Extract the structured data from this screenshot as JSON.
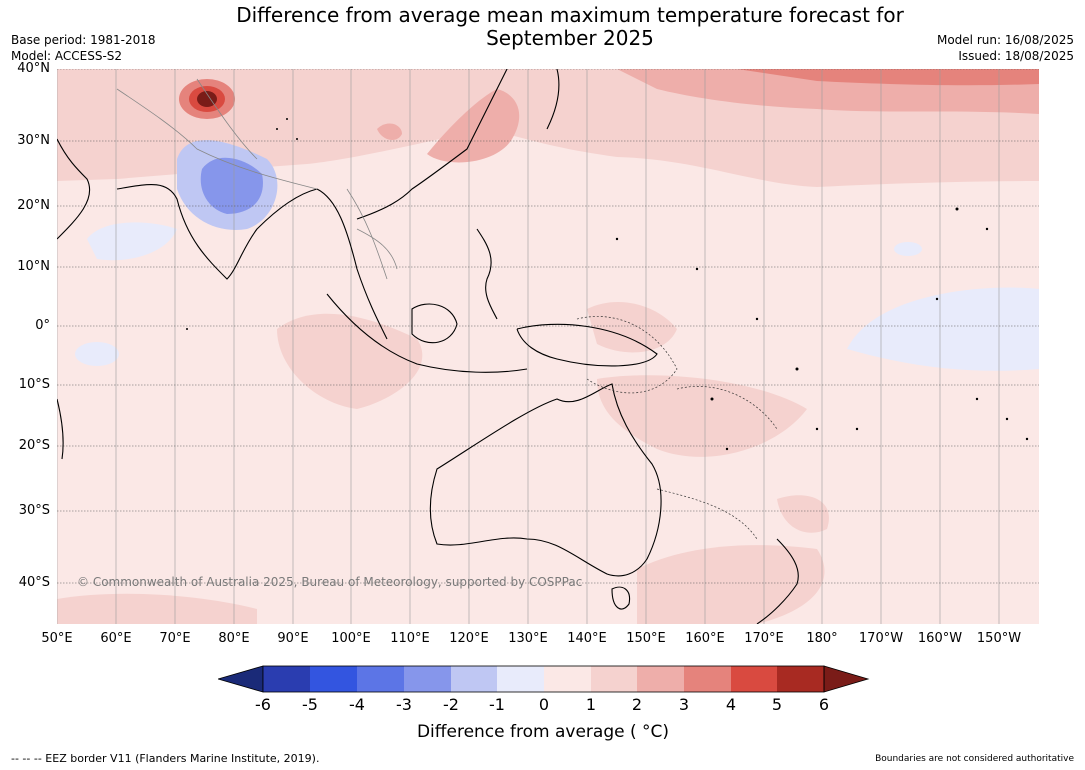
{
  "title_line1": "Difference from average mean maximum temperature forecast for",
  "title_line2": "September 2025",
  "base_period": "Base period: 1981-2018",
  "model": "Model: ACCESS-S2",
  "model_run": "Model run: 16/08/2025",
  "issued": "Issued: 18/08/2025",
  "lat_labels": [
    "40°N",
    "30°N",
    "20°N",
    "10°N",
    "0°",
    "10°S",
    "20°S",
    "30°S",
    "40°S"
  ],
  "lon_labels": [
    "50°E",
    "60°E",
    "70°E",
    "80°E",
    "90°E",
    "100°E",
    "110°E",
    "120°E",
    "130°E",
    "140°E",
    "150°E",
    "160°E",
    "170°E",
    "180°",
    "170°W",
    "160°W",
    "150°W"
  ],
  "copyright": "© Commonwealth of Australia 2025, Bureau of Meteorology, supported by COSPPac",
  "colorbar": {
    "label": "Difference from average ( °C)",
    "ticks": [
      "-6",
      "-5",
      "-4",
      "-3",
      "-2",
      "-1",
      "0",
      "1",
      "2",
      "3",
      "4",
      "5",
      "6"
    ],
    "colors": [
      "#1a2a78",
      "#2a3db0",
      "#3355e0",
      "#5c75e6",
      "#8696eb",
      "#bfc7f3",
      "#e8ebfb",
      "#fbe8e6",
      "#f5d2cf",
      "#eeaeaa",
      "#e5837c",
      "#d94a40",
      "#a82a22",
      "#7a1c18"
    ]
  },
  "footer_left": "--  --  -- EEZ border V11 (Flanders Marine Institute, 2019).",
  "footer_right": "Boundaries are not considered authoritative"
}
